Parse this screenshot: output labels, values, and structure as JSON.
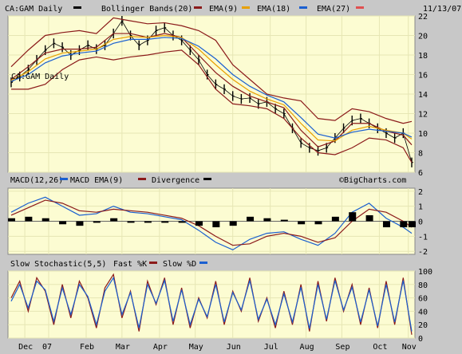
{
  "header": {
    "ticker": "CA:GAM Daily",
    "legend_boll": "Bollinger Bands(20)",
    "legend_ema9": "EMA(9)",
    "legend_ema18": "EMA(18)",
    "legend_ema27": "EMA(27)",
    "date": "11/13/07"
  },
  "watermark": "©BigCharts.com",
  "x_tick_labels": [
    "Dec",
    "07",
    "Feb",
    "Mar",
    "Apr",
    "May",
    "Jun",
    "Jul",
    "Aug",
    "Sep",
    "Oct",
    "Nov"
  ],
  "colors": {
    "background": "#c8c8c8",
    "plot_bg": "#fcfcd2",
    "grid": "#e6e6b4",
    "price": "#000000",
    "bollinger": "#8b1a1a",
    "ema9": "#8b1a1a",
    "ema18": "#e8a000",
    "ema27": "#1a5fd0",
    "macd": "#1a5fd0",
    "macd_ema": "#8b1a1a",
    "fastk": "#8b1a1a",
    "slowd": "#1a5fd0"
  },
  "chart_data": [
    {
      "type": "line",
      "name": "price",
      "title": "CA:GAM Daily",
      "ylim": [
        6,
        22
      ],
      "y_ticks": [
        6,
        8,
        10,
        12,
        14,
        16,
        18,
        20,
        22
      ],
      "grid": true,
      "x_labels": [
        "Dec",
        "07",
        "Feb",
        "Mar",
        "Apr",
        "May",
        "Jun",
        "Jul",
        "Aug",
        "Sep",
        "Oct",
        "Nov"
      ],
      "series": [
        {
          "name": "CA:GAM Daily",
          "x": [
            0,
            5,
            10,
            15,
            20,
            25,
            30,
            35,
            40,
            45,
            50,
            55,
            60,
            65,
            70,
            75,
            80,
            85,
            90,
            95,
            100,
            105,
            110,
            115,
            120,
            125,
            130,
            135,
            140,
            145,
            150,
            155,
            160,
            165,
            170,
            175,
            180,
            185,
            190,
            195,
            200,
            205,
            210,
            215,
            220,
            225,
            230,
            235
          ],
          "values": [
            15.2,
            15.8,
            16.5,
            17.5,
            18.5,
            19.2,
            18.8,
            18.0,
            18.5,
            19.0,
            18.6,
            19.0,
            20.2,
            21.5,
            20.0,
            19.0,
            19.5,
            20.5,
            20.8,
            20.0,
            19.5,
            18.5,
            17.5,
            16.0,
            15.0,
            14.5,
            13.8,
            13.5,
            13.6,
            13.0,
            13.2,
            12.5,
            12.0,
            10.5,
            9.0,
            8.5,
            8.2,
            8.5,
            9.5,
            10.5,
            11.3,
            11.5,
            11.0,
            10.5,
            10.0,
            9.5,
            10.0,
            7.0
          ]
        },
        {
          "name": "Bollinger Bands(20) upper",
          "x": [
            0,
            10,
            20,
            30,
            40,
            50,
            60,
            70,
            80,
            90,
            100,
            110,
            120,
            130,
            140,
            150,
            160,
            170,
            180,
            190,
            200,
            210,
            220,
            230,
            235
          ],
          "values": [
            16.8,
            18.5,
            20.0,
            20.3,
            20.5,
            20.2,
            21.8,
            21.5,
            21.2,
            21.3,
            21.0,
            20.5,
            19.5,
            17.0,
            15.5,
            14.0,
            13.6,
            13.3,
            11.5,
            11.3,
            12.5,
            12.2,
            11.5,
            11.0,
            11.2
          ]
        },
        {
          "name": "Bollinger Bands(20) lower",
          "x": [
            0,
            10,
            20,
            30,
            40,
            50,
            60,
            70,
            80,
            90,
            100,
            110,
            120,
            130,
            140,
            150,
            160,
            170,
            180,
            190,
            200,
            210,
            220,
            230,
            235
          ],
          "values": [
            14.5,
            14.5,
            15.0,
            16.5,
            17.5,
            17.8,
            17.5,
            17.8,
            18.0,
            18.3,
            18.5,
            17.0,
            14.5,
            13.0,
            12.8,
            12.5,
            11.5,
            9.5,
            8.0,
            7.8,
            8.5,
            9.5,
            9.3,
            8.5,
            7.0
          ]
        },
        {
          "name": "EMA(9)",
          "x": [
            0,
            10,
            20,
            30,
            40,
            50,
            60,
            70,
            80,
            90,
            100,
            110,
            120,
            130,
            140,
            150,
            160,
            170,
            180,
            190,
            200,
            210,
            220,
            230,
            235
          ],
          "values": [
            15.5,
            16.8,
            18.2,
            18.6,
            18.6,
            18.8,
            20.2,
            20.2,
            19.8,
            20.2,
            19.8,
            18.0,
            16.2,
            14.8,
            13.8,
            13.2,
            12.6,
            10.3,
            8.6,
            9.2,
            11.0,
            11.0,
            10.2,
            9.8,
            8.8
          ]
        },
        {
          "name": "EMA(18)",
          "x": [
            0,
            10,
            20,
            30,
            40,
            50,
            60,
            70,
            80,
            90,
            100,
            110,
            120,
            130,
            140,
            150,
            160,
            170,
            180,
            190,
            200,
            210,
            220,
            230,
            235
          ],
          "values": [
            15.4,
            16.3,
            17.6,
            18.2,
            18.4,
            18.6,
            19.6,
            19.9,
            19.8,
            20.0,
            19.8,
            18.6,
            17.0,
            15.5,
            14.3,
            13.5,
            12.9,
            11.0,
            9.3,
            9.2,
            10.3,
            10.7,
            10.3,
            10.0,
            9.4
          ]
        },
        {
          "name": "EMA(27)",
          "x": [
            0,
            10,
            20,
            30,
            40,
            50,
            60,
            70,
            80,
            90,
            100,
            110,
            120,
            130,
            140,
            150,
            160,
            170,
            180,
            190,
            200,
            210,
            220,
            230,
            235
          ],
          "values": [
            15.3,
            16.0,
            17.2,
            17.9,
            18.2,
            18.4,
            19.2,
            19.6,
            19.6,
            19.8,
            19.7,
            18.9,
            17.6,
            16.0,
            14.8,
            13.9,
            13.2,
            11.6,
            9.9,
            9.5,
            10.1,
            10.4,
            10.2,
            10.0,
            9.6
          ]
        }
      ]
    },
    {
      "type": "line",
      "name": "macd",
      "title": "MACD(12,26)",
      "ylim": [
        -2.2,
        2.2
      ],
      "y_ticks": [
        -2,
        -1,
        0,
        1,
        2
      ],
      "series": [
        {
          "name": "MACD(12,26)",
          "x": [
            0,
            10,
            20,
            30,
            40,
            50,
            60,
            70,
            80,
            90,
            100,
            110,
            120,
            130,
            140,
            150,
            160,
            170,
            180,
            190,
            200,
            210,
            220,
            230,
            235
          ],
          "values": [
            0.6,
            1.2,
            1.6,
            1.0,
            0.4,
            0.5,
            1.0,
            0.6,
            0.5,
            0.3,
            0.1,
            -0.6,
            -1.4,
            -1.9,
            -1.2,
            -0.8,
            -0.7,
            -1.2,
            -1.6,
            -0.8,
            0.6,
            1.2,
            0.2,
            -0.4,
            -0.8
          ]
        },
        {
          "name": "MACD EMA(9)",
          "x": [
            0,
            10,
            20,
            30,
            40,
            50,
            60,
            70,
            80,
            90,
            100,
            110,
            120,
            130,
            140,
            150,
            160,
            170,
            180,
            190,
            200,
            210,
            220,
            230,
            235
          ],
          "values": [
            0.4,
            0.9,
            1.4,
            1.2,
            0.7,
            0.6,
            0.8,
            0.7,
            0.6,
            0.4,
            0.2,
            -0.3,
            -1.0,
            -1.6,
            -1.5,
            -1.0,
            -0.8,
            -1.0,
            -1.4,
            -1.1,
            0.0,
            0.8,
            0.6,
            0.0,
            -0.4
          ]
        },
        {
          "name": "Divergence",
          "x": [
            0,
            10,
            20,
            30,
            40,
            50,
            60,
            70,
            80,
            90,
            100,
            110,
            120,
            130,
            140,
            150,
            160,
            170,
            180,
            190,
            200,
            210,
            220,
            230,
            235
          ],
          "values": [
            0.2,
            0.3,
            0.2,
            -0.2,
            -0.3,
            -0.1,
            0.2,
            -0.1,
            -0.1,
            -0.1,
            -0.1,
            -0.3,
            -0.4,
            -0.3,
            0.3,
            0.2,
            0.1,
            -0.2,
            -0.2,
            0.3,
            0.6,
            0.4,
            -0.4,
            -0.4,
            -0.4
          ]
        }
      ]
    },
    {
      "type": "line",
      "name": "stochastic",
      "title": "Slow Stochastic(5,5)",
      "ylim": [
        0,
        100
      ],
      "y_ticks": [
        0,
        20,
        40,
        60,
        80,
        100
      ],
      "series": [
        {
          "name": "Fast %K",
          "x": [
            0,
            5,
            10,
            15,
            20,
            25,
            30,
            35,
            40,
            45,
            50,
            55,
            60,
            65,
            70,
            75,
            80,
            85,
            90,
            95,
            100,
            105,
            110,
            115,
            120,
            125,
            130,
            135,
            140,
            145,
            150,
            155,
            160,
            165,
            170,
            175,
            180,
            185,
            190,
            195,
            200,
            205,
            210,
            215,
            220,
            225,
            230,
            235
          ],
          "values": [
            60,
            85,
            40,
            90,
            70,
            20,
            80,
            30,
            85,
            60,
            15,
            75,
            95,
            30,
            70,
            10,
            85,
            50,
            90,
            20,
            75,
            15,
            60,
            30,
            85,
            20,
            70,
            40,
            90,
            25,
            60,
            15,
            70,
            20,
            80,
            10,
            85,
            25,
            90,
            40,
            80,
            20,
            75,
            15,
            85,
            20,
            90,
            5
          ]
        },
        {
          "name": "Slow %D",
          "x": [
            0,
            5,
            10,
            15,
            20,
            25,
            30,
            35,
            40,
            45,
            50,
            55,
            60,
            65,
            70,
            75,
            80,
            85,
            90,
            95,
            100,
            105,
            110,
            115,
            120,
            125,
            130,
            135,
            140,
            145,
            150,
            155,
            160,
            165,
            170,
            175,
            180,
            185,
            190,
            195,
            200,
            205,
            210,
            215,
            220,
            225,
            230,
            235
          ],
          "values": [
            55,
            80,
            45,
            85,
            72,
            25,
            75,
            35,
            80,
            62,
            20,
            70,
            90,
            35,
            68,
            15,
            80,
            52,
            86,
            25,
            72,
            20,
            58,
            32,
            80,
            24,
            68,
            42,
            86,
            28,
            58,
            20,
            66,
            24,
            76,
            14,
            80,
            28,
            86,
            42,
            76,
            24,
            72,
            18,
            80,
            24,
            86,
            10
          ]
        }
      ]
    }
  ]
}
